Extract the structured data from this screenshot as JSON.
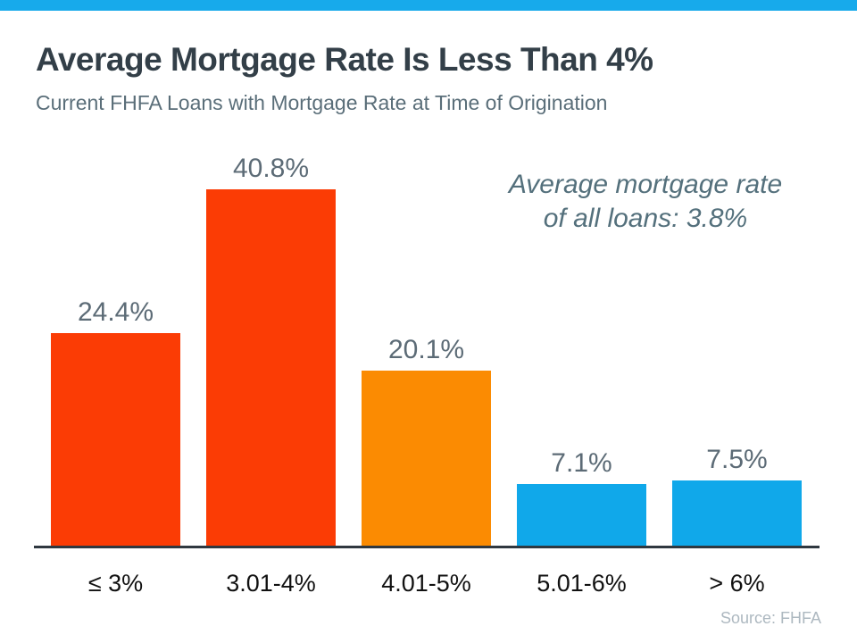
{
  "page": {
    "background": "#ffffff",
    "accent_strip_color": "#17AAEB"
  },
  "header": {
    "title": "Average Mortgage Rate Is Less Than 4%",
    "subtitle": "Current FHFA Loans with Mortgage Rate at Time of Origination"
  },
  "annotation": {
    "line1": "Average mortgage rate",
    "line2": "of all loans: 3.8%"
  },
  "source": "Source: FHFA",
  "chart_data": {
    "type": "bar",
    "title": "Average Mortgage Rate Is Less Than 4%",
    "subtitle": "Current FHFA Loans with Mortgage Rate at Time of Origination",
    "categories": [
      "≤ 3%",
      "3.01-4%",
      "4.01-5%",
      "5.01-6%",
      "> 6%"
    ],
    "values": [
      24.4,
      40.8,
      20.1,
      7.1,
      7.5
    ],
    "value_labels": [
      "24.4%",
      "40.8%",
      "20.1%",
      "7.1%",
      "7.5%"
    ],
    "bar_colors": [
      "#FB3C05",
      "#FB3C05",
      "#FB8B02",
      "#10A8EA",
      "#10A8EA"
    ],
    "annotation": "Average mortgage rate of all loans: 3.8%",
    "xlabel": "",
    "ylabel": "",
    "ylim": [
      0,
      45
    ],
    "grid": false,
    "legend": false,
    "source": "Source: FHFA"
  }
}
